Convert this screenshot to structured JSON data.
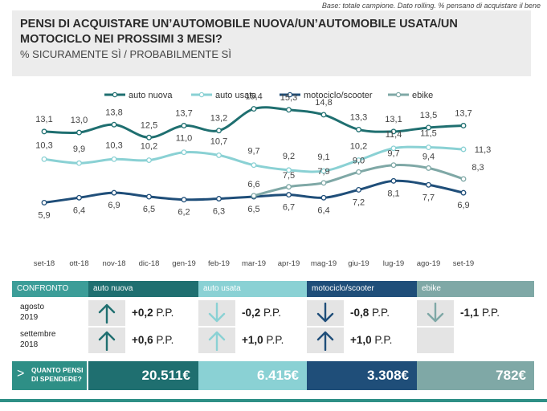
{
  "base_note": "Base: totale campione. Dato rolling. % pensano di acquistare il bene",
  "header": {
    "title_line1": "PENSI DI ACQUISTARE UN’AUTOMOBILE NUOVA/UN’AUTOMOBILE USATA/UN",
    "title_line2": "MOTOCICLO  NEI PROSSIMI 3 MESI?",
    "subtitle": "% SICURAMENTE SÌ / PROBABILMENTE SÌ"
  },
  "chart_data": {
    "type": "line",
    "x": [
      "set-18",
      "ott-18",
      "nov-18",
      "dic-18",
      "gen-19",
      "feb-19",
      "mar-19",
      "apr-19",
      "mag-19",
      "giu-19",
      "lug-19",
      "ago-19",
      "set-19"
    ],
    "ylim": [
      0,
      18
    ],
    "legend_position": "top",
    "series": [
      {
        "name": "auto nuova",
        "color": "#1f6f70",
        "values": [
          13.1,
          13.0,
          13.8,
          12.5,
          13.7,
          13.2,
          15.4,
          15.3,
          14.8,
          13.3,
          13.1,
          13.5,
          13.7
        ],
        "labels": [
          "13,1",
          "13,0",
          "13,8",
          "12,5",
          "13,7",
          "13,2",
          "15,4",
          "15,3",
          "14,8",
          "13,3",
          "13,1",
          "13,5",
          "13,7"
        ]
      },
      {
        "name": "auto usata",
        "color": "#8ad1d4",
        "values": [
          10.3,
          9.9,
          10.3,
          10.2,
          11.0,
          10.7,
          9.7,
          9.2,
          9.1,
          10.2,
          11.4,
          11.5,
          11.3
        ],
        "labels": [
          "10,3",
          "9,9",
          "10,3",
          "10,2",
          "11,0",
          "10,7",
          "9,7",
          "9,2",
          "9,1",
          "10,2",
          "11,4",
          "11,5",
          "11,3"
        ]
      },
      {
        "name": "motociclo/scooter",
        "color": "#1f4e79",
        "values": [
          5.9,
          6.4,
          6.9,
          6.5,
          6.2,
          6.3,
          6.5,
          6.7,
          6.4,
          7.2,
          8.1,
          7.7,
          6.9
        ],
        "labels": [
          "5,9",
          "6,4",
          "6,9",
          "6,5",
          "6,2",
          "6,3",
          "6,5",
          "6,7",
          "6,4",
          "7,2",
          "8,1",
          "7,7",
          "6,9"
        ]
      },
      {
        "name": "ebike",
        "color": "#7fa8a6",
        "values": [
          null,
          null,
          null,
          null,
          null,
          null,
          6.6,
          7.5,
          7.9,
          9.0,
          9.7,
          9.4,
          8.3
        ],
        "labels": [
          "",
          "",
          "",
          "",
          "",
          "",
          "6,6",
          "7,5",
          "7,9",
          "9,0",
          "9,7",
          "9,4",
          "8,3"
        ]
      }
    ]
  },
  "table": {
    "confronto_label": "CONFRONTO",
    "columns": [
      {
        "name": "auto nuova",
        "color": "#1f6f70",
        "arrow_color": "#1f6f70"
      },
      {
        "name": "auto usata",
        "color": "#8ad1d4",
        "arrow_color": "#8ad1d4"
      },
      {
        "name": "motociclo/scooter",
        "color": "#1f4e79",
        "arrow_color": "#1f4e79"
      },
      {
        "name": "ebike",
        "color": "#7fa8a6",
        "arrow_color": "#7fa8a6"
      }
    ],
    "rows": [
      {
        "label": "agosto\n2019",
        "values": [
          {
            "direction": "up",
            "value": "+0,2",
            "unit": "P.P."
          },
          {
            "direction": "down",
            "value": "-0,2",
            "unit": "P.P."
          },
          {
            "direction": "down",
            "value": "-0,8",
            "unit": "P.P."
          },
          {
            "direction": "down",
            "value": "-1,1",
            "unit": "P.P."
          }
        ]
      },
      {
        "label": "settembre\n2018",
        "values": [
          {
            "direction": "up",
            "value": "+0,6",
            "unit": "P.P."
          },
          {
            "direction": "up",
            "value": "+1,0",
            "unit": "P.P."
          },
          {
            "direction": "up",
            "value": "+1,0",
            "unit": "P.P."
          },
          null
        ]
      }
    ]
  },
  "spend": {
    "label_line1": "QUANTO PENSI",
    "label_line2": "DI SPENDERE?",
    "values": [
      "20.511€",
      "6.415€",
      "3.308€",
      "782€"
    ]
  }
}
